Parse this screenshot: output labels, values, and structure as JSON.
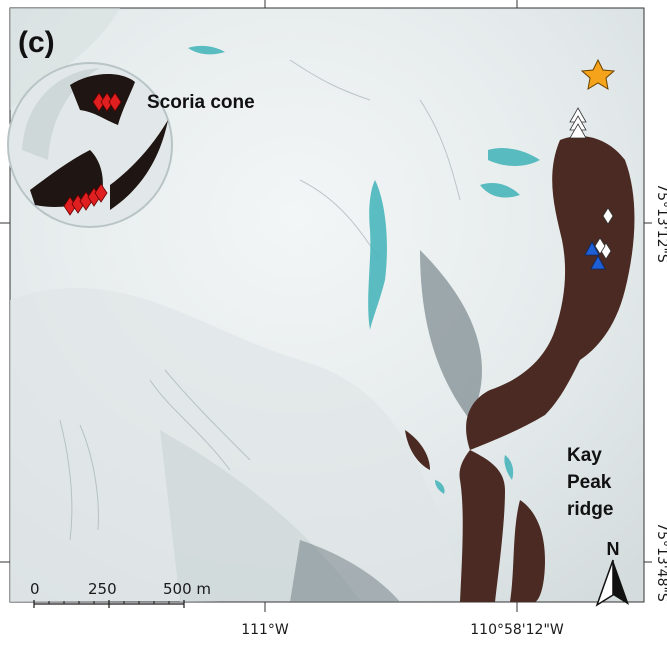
{
  "panel_label": "(c)",
  "place_labels": {
    "scoria_cone": "Scoria cone",
    "kay_peak_line1": "Kay",
    "kay_peak_line2": "Peak",
    "kay_peak_line3": "ridge"
  },
  "axes": {
    "bottom_ticks": [
      "111°W",
      "110°58'12\"W"
    ],
    "right_ticks": [
      "75°13'12\"S",
      "75°13'48\"S"
    ]
  },
  "scale_bar": {
    "ticks": [
      "0",
      "250",
      "500 m"
    ]
  },
  "north_arrow": {
    "label": "N"
  },
  "markers": {
    "red_diamond_color": "#e02020",
    "white_marker_color": "#ffffff",
    "blue_triangle_color": "#1f5fd6",
    "star_color": "#f5a31a"
  },
  "colors": {
    "snow": "#e9eeee",
    "rock": "#4a2a22",
    "melt_water": "#3fb3b8"
  }
}
